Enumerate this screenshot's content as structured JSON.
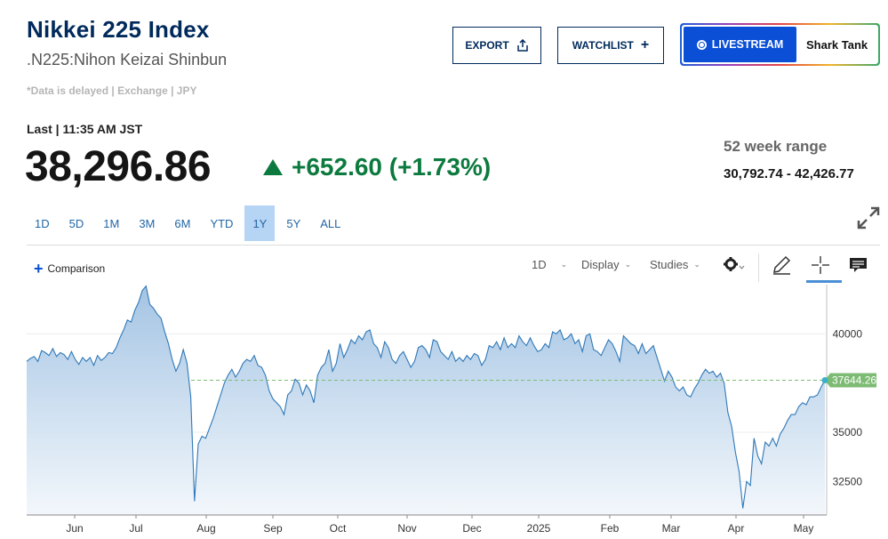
{
  "header": {
    "title": "Nikkei 225 Index",
    "subtitle": ".N225:Nihon Keizai Shinbun",
    "delayed_note": "*Data is delayed | Exchange | JPY"
  },
  "actions": {
    "export_label": "EXPORT",
    "watchlist_label": "WATCHLIST",
    "livestream_label": "LIVESTREAM",
    "livestream_show": "Shark Tank"
  },
  "quote": {
    "last_label": "Last | 11:35 AM JST",
    "price": "38,296.86",
    "change": "+652.60 (+1.73%)",
    "range_label": "52 week range",
    "range_value": "30,792.74 - 42,426.77"
  },
  "colors": {
    "title": "#002a5c",
    "up": "#0c7a3e",
    "accent": "#0a4fd6",
    "active_tab": "#b6d4f3",
    "line": "#2f78b8",
    "last_badge": "#7cbb73"
  },
  "range_tabs": [
    {
      "label": "1D"
    },
    {
      "label": "5D"
    },
    {
      "label": "1M"
    },
    {
      "label": "3M"
    },
    {
      "label": "6M"
    },
    {
      "label": "YTD"
    },
    {
      "label": "1Y",
      "active": true
    },
    {
      "label": "5Y"
    },
    {
      "label": "ALL"
    }
  ],
  "toolbar": {
    "comparison_label": "Comparison",
    "interval_label": "1D",
    "display_label": "Display",
    "studies_label": "Studies",
    "icons": [
      "gear-icon",
      "pencil-icon",
      "crosshair-icon",
      "comment-icon"
    ]
  },
  "chart_data": {
    "type": "area",
    "x_labels": [
      "Jun",
      "Jul",
      "Aug",
      "Sep",
      "Oct",
      "Nov",
      "Dec",
      "2025",
      "Feb",
      "Mar",
      "Apr",
      "May"
    ],
    "y_ticks": [
      40000,
      35000,
      32500
    ],
    "ylim": [
      30800,
      42500
    ],
    "last_value": 37644.26,
    "last_value_label": "37644.26",
    "grid": true,
    "series": [
      {
        "values": [
          38600,
          38750,
          38850,
          38600,
          39150,
          39050,
          38900,
          39250,
          38850,
          39050,
          38950,
          38700,
          39100,
          38700,
          38450,
          38800,
          38600,
          38800,
          38400,
          38900,
          38650,
          38800,
          39050,
          39000,
          39300,
          39800,
          40200,
          40700,
          40600,
          41200,
          41600,
          42200,
          42426,
          41500,
          41300,
          41000,
          40800,
          40100,
          39500,
          38700,
          38100,
          38500,
          39200,
          38500,
          36800,
          31500,
          34400,
          34800,
          34700,
          35200,
          35700,
          36300,
          36900,
          37500,
          37900,
          38200,
          37800,
          38100,
          38500,
          38700,
          38600,
          38900,
          38400,
          38300,
          37900,
          37100,
          36700,
          36500,
          36300,
          35900,
          36900,
          37100,
          37700,
          37500,
          36900,
          37400,
          37100,
          36500,
          37900,
          38300,
          38500,
          39200,
          38100,
          38500,
          39500,
          38800,
          39200,
          39700,
          39500,
          39900,
          39700,
          40100,
          40200,
          39500,
          39300,
          38800,
          39600,
          39300,
          38700,
          38500,
          38900,
          39100,
          38700,
          38300,
          38600,
          39300,
          39400,
          39200,
          38800,
          39700,
          39600,
          39100,
          38900,
          38700,
          39100,
          38600,
          38800,
          38600,
          38900,
          38700,
          39000,
          38900,
          38400,
          38700,
          39400,
          39300,
          39600,
          39200,
          39800,
          39300,
          39500,
          39300,
          39900,
          39600,
          39400,
          39800,
          39400,
          39100,
          39200,
          39500,
          39300,
          40100,
          40000,
          40200,
          39700,
          39800,
          40000,
          39500,
          39700,
          39100,
          39900,
          40000,
          39200,
          39100,
          38900,
          39300,
          39700,
          39500,
          39100,
          38600,
          39900,
          39700,
          39500,
          39400,
          39000,
          39500,
          39000,
          39200,
          39400,
          38800,
          38200,
          37600,
          38100,
          37800,
          37300,
          37100,
          37300,
          36900,
          36800,
          37200,
          37500,
          37900,
          38200,
          38000,
          38100,
          37800,
          38000,
          37500,
          36000,
          35300,
          34000,
          33000,
          31136,
          32500,
          32300,
          34700,
          33800,
          33400,
          34500,
          34300,
          34700,
          34300,
          34900,
          35200,
          35600,
          35900,
          35900,
          36300,
          36500,
          36400,
          36800,
          36800,
          36900,
          37300,
          37644.26
        ]
      }
    ]
  }
}
